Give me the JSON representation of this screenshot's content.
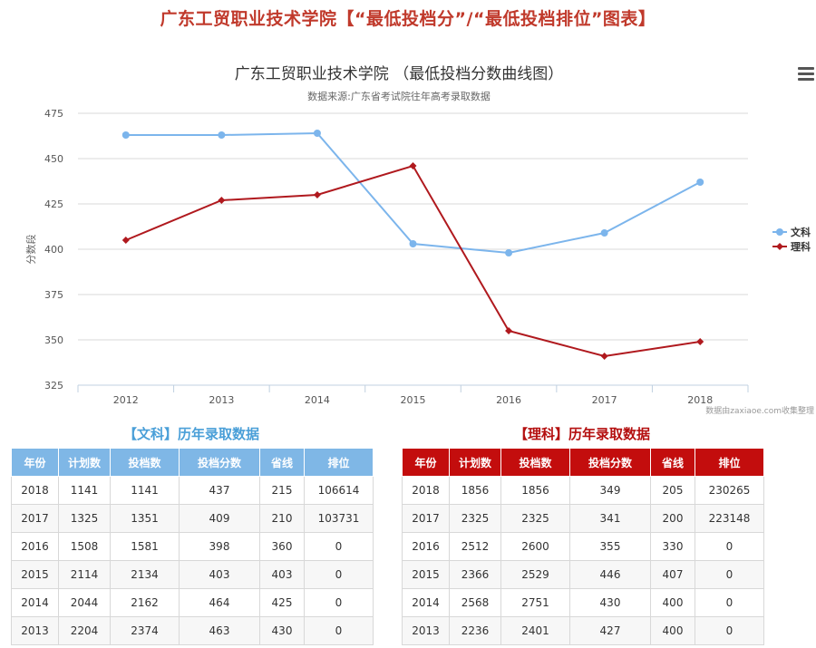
{
  "page": {
    "title": "广东工贸职业技术学院【“最低投档分”/“最低投档排位”图表】"
  },
  "chart_data": {
    "type": "line",
    "title": "广东工贸职业技术学院 （最低投档分数曲线图）",
    "subtitle": "数据来源:广东省考试院往年高考录取数据",
    "ylabel": "分数段",
    "xlabel": "",
    "credit": "数据由zaxiaoe.com收集整理",
    "ylim": [
      325,
      475
    ],
    "yticks": [
      325,
      350,
      375,
      400,
      425,
      450,
      475
    ],
    "categories": [
      "2012",
      "2013",
      "2014",
      "2015",
      "2016",
      "2017",
      "2018"
    ],
    "grid": true,
    "legend_position": "right",
    "series": [
      {
        "name": "文科",
        "color": "#7cb5ec",
        "marker": "circle",
        "values": [
          463,
          463,
          464,
          403,
          398,
          409,
          437
        ]
      },
      {
        "name": "理科",
        "color": "#b0191e",
        "marker": "diamond",
        "values": [
          405,
          427,
          430,
          446,
          355,
          341,
          349
        ]
      }
    ]
  },
  "wen_table": {
    "title": "【文科】历年录取数据",
    "headers": [
      "年份",
      "计划数",
      "投档数",
      "投档分数",
      "省线",
      "排位"
    ],
    "rows": [
      [
        "2018",
        "1141",
        "1141",
        "437",
        "215",
        "106614"
      ],
      [
        "2017",
        "1325",
        "1351",
        "409",
        "210",
        "103731"
      ],
      [
        "2016",
        "1508",
        "1581",
        "398",
        "360",
        "0"
      ],
      [
        "2015",
        "2114",
        "2134",
        "403",
        "403",
        "0"
      ],
      [
        "2014",
        "2044",
        "2162",
        "464",
        "425",
        "0"
      ],
      [
        "2013",
        "2204",
        "2374",
        "463",
        "430",
        "0"
      ]
    ]
  },
  "li_table": {
    "title": "【理科】历年录取数据",
    "headers": [
      "年份",
      "计划数",
      "投档数",
      "投档分数",
      "省线",
      "排位"
    ],
    "rows": [
      [
        "2018",
        "1856",
        "1856",
        "349",
        "205",
        "230265"
      ],
      [
        "2017",
        "2325",
        "2325",
        "341",
        "200",
        "223148"
      ],
      [
        "2016",
        "2512",
        "2600",
        "355",
        "330",
        "0"
      ],
      [
        "2015",
        "2366",
        "2529",
        "446",
        "407",
        "0"
      ],
      [
        "2014",
        "2568",
        "2751",
        "430",
        "400",
        "0"
      ],
      [
        "2013",
        "2236",
        "2401",
        "427",
        "400",
        "0"
      ]
    ]
  }
}
